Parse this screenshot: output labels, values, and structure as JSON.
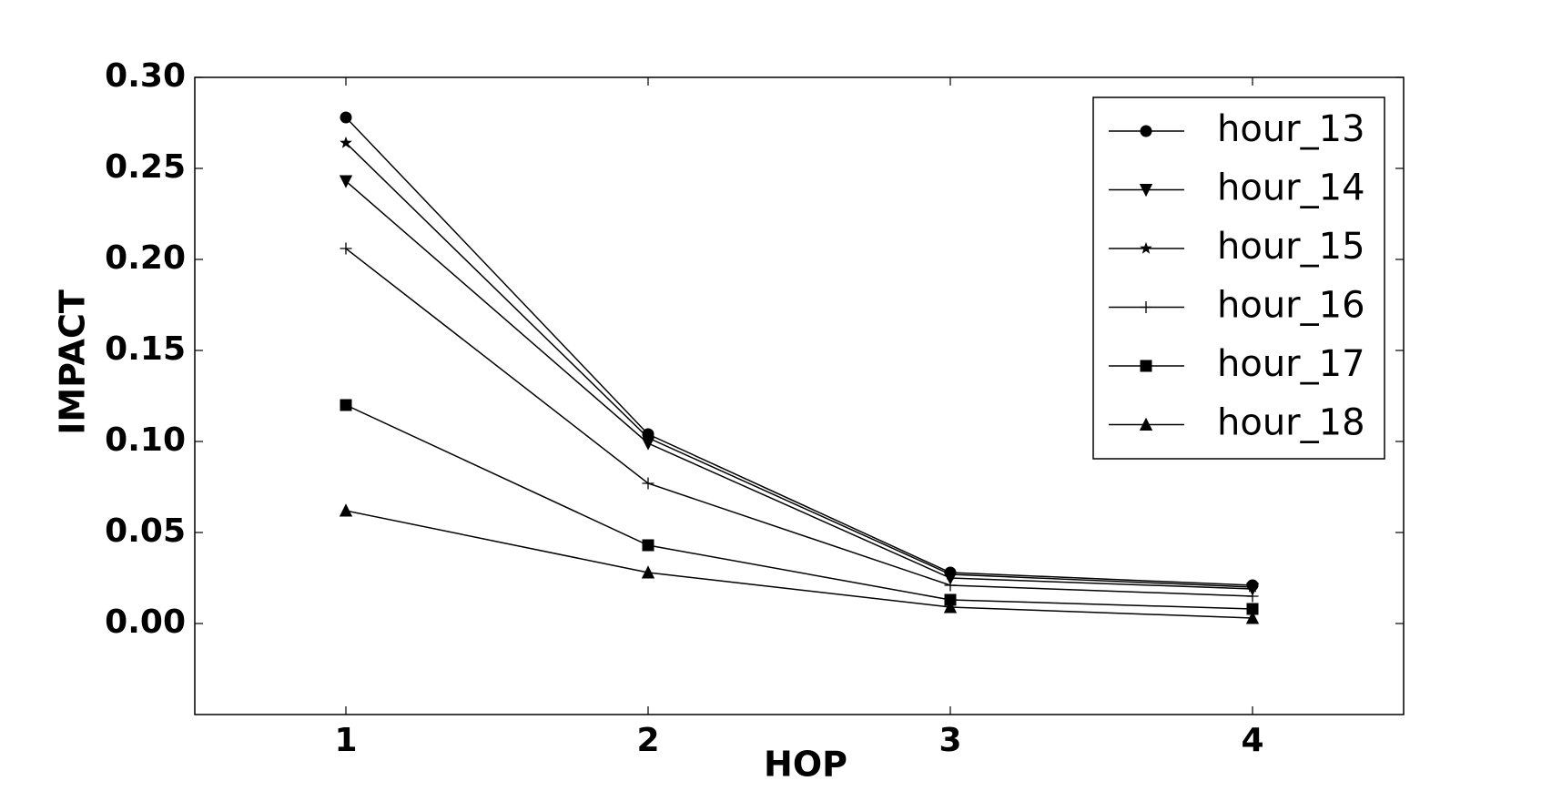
{
  "chart_data": {
    "type": "line",
    "x_label": "HOP",
    "y_label": "IMPACT",
    "x": [
      1,
      2,
      3,
      4
    ],
    "xlim": [
      0.5,
      4.5
    ],
    "xticks": [
      1,
      2,
      3,
      4
    ],
    "ylim": [
      -0.05,
      0.3
    ],
    "yticks": [
      {
        "value": 0,
        "label": "0.00"
      },
      {
        "value": 0.05,
        "label": "0.05"
      },
      {
        "value": 0.1,
        "label": "0.10"
      },
      {
        "value": 0.15,
        "label": "0.15"
      },
      {
        "value": 0.2,
        "label": "0.20"
      },
      {
        "value": 0.25,
        "label": "0.25"
      },
      {
        "value": 0.3,
        "label": "0.30"
      }
    ],
    "grid": false,
    "legend": "upper right",
    "series": [
      {
        "name": "hour_13",
        "color": "#000000",
        "marker": "circle",
        "values": [
          0.278,
          0.104,
          0.028,
          0.021
        ]
      },
      {
        "name": "hour_14",
        "color": "#000000",
        "marker": "triangle-down",
        "values": [
          0.243,
          0.099,
          0.025,
          0.019
        ]
      },
      {
        "name": "hour_15",
        "color": "#000000",
        "marker": "star",
        "values": [
          0.264,
          0.102,
          0.027,
          0.02
        ]
      },
      {
        "name": "hour_16",
        "color": "#000000",
        "marker": "plus",
        "values": [
          0.206,
          0.077,
          0.021,
          0.015
        ]
      },
      {
        "name": "hour_17",
        "color": "#000000",
        "marker": "square",
        "values": [
          0.12,
          0.043,
          0.013,
          0.008
        ]
      },
      {
        "name": "hour_18",
        "color": "#000000",
        "marker": "triangle-up",
        "values": [
          0.062,
          0.028,
          0.009,
          0.003
        ]
      }
    ]
  }
}
